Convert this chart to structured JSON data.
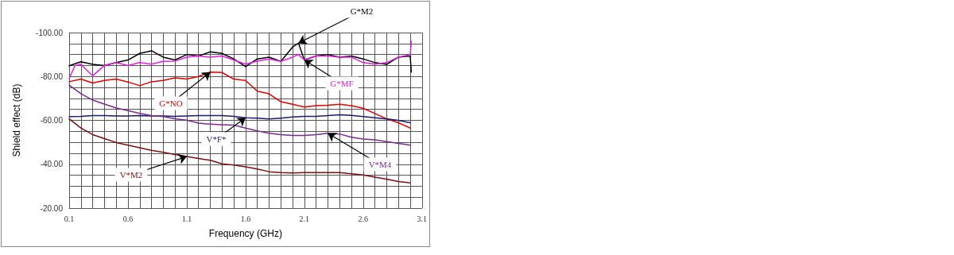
{
  "chart_data": {
    "type": "line",
    "xlabel": "Frequency (GHz)",
    "ylabel": "Shield effect (dB)",
    "x": [
      0.1,
      0.2,
      0.3,
      0.4,
      0.5,
      0.6,
      0.7,
      0.8,
      0.9,
      1.0,
      1.1,
      1.2,
      1.3,
      1.4,
      1.5,
      1.6,
      1.7,
      1.8,
      1.9,
      2.0,
      2.1,
      2.2,
      2.3,
      2.4,
      2.5,
      2.6,
      2.7,
      2.8,
      2.9,
      3.0
    ],
    "series": [
      {
        "name": "G*M2",
        "color": "#000000",
        "x": [
          0.1,
          0.2,
          0.3,
          0.4,
          0.5,
          0.6,
          0.7,
          0.8,
          0.9,
          1.0,
          1.1,
          1.2,
          1.3,
          1.4,
          1.5,
          1.6,
          1.7,
          1.8,
          1.9,
          2.0,
          2.05,
          2.1,
          2.2,
          2.3,
          2.4,
          2.5,
          2.6,
          2.7,
          2.8,
          2.9,
          3.0,
          3.01
        ],
        "values": [
          -84.9,
          -86.7,
          -85.5,
          -85,
          -86.3,
          -87.5,
          -90.5,
          -91.7,
          -88.8,
          -87.5,
          -90,
          -89.3,
          -91.2,
          -90.5,
          -88,
          -84.5,
          -88,
          -88.8,
          -86.9,
          -93.4,
          -95.2,
          -87.5,
          -89.3,
          -90,
          -88.8,
          -89.3,
          -88,
          -86.3,
          -85.5,
          -88.8,
          -89.3,
          -82
        ]
      },
      {
        "name": "G*MF",
        "color": "#e020e0",
        "x": [
          0.1,
          0.15,
          0.2,
          0.3,
          0.4,
          0.5,
          0.6,
          0.7,
          0.8,
          0.9,
          1.0,
          1.1,
          1.2,
          1.3,
          1.4,
          1.5,
          1.6,
          1.7,
          1.8,
          1.9,
          2.0,
          2.05,
          2.1,
          2.2,
          2.3,
          2.4,
          2.5,
          2.6,
          2.7,
          2.8,
          2.9,
          3.0,
          3.01
        ],
        "values": [
          -79,
          -85,
          -85.5,
          -80.3,
          -85,
          -86.3,
          -85,
          -86.3,
          -85.6,
          -86.9,
          -87,
          -88.8,
          -89.3,
          -88.8,
          -89.3,
          -87.5,
          -85.6,
          -87,
          -88,
          -86.9,
          -88.8,
          -90,
          -87.5,
          -89.3,
          -89.3,
          -88.8,
          -88.8,
          -86.3,
          -85.6,
          -86.3,
          -88.8,
          -90,
          -96
        ]
      },
      {
        "name": "G*NO",
        "color": "#e00000",
        "values": [
          -77.6,
          -78.8,
          -77,
          -78.2,
          -78.8,
          -77.5,
          -75.8,
          -77.6,
          -78.2,
          -79.4,
          -78.8,
          -80,
          -82,
          -81.8,
          -78.8,
          -78.2,
          -73.3,
          -72.1,
          -68.5,
          -67.3,
          -66.1,
          -66.7,
          -66.9,
          -67.3,
          -66.7,
          -65.5,
          -63.1,
          -60.7,
          -58.9,
          -56.5
        ]
      },
      {
        "name": "V*F*",
        "color": "#1a1a6e",
        "values": [
          -61.7,
          -61.8,
          -62.2,
          -62.2,
          -62,
          -62,
          -62.2,
          -62,
          -62,
          -61.8,
          -62,
          -62.2,
          -62.2,
          -62.2,
          -61.8,
          -61.2,
          -61,
          -60.6,
          -61,
          -61.5,
          -61.8,
          -61.8,
          -62.2,
          -62.5,
          -62.3,
          -61.7,
          -61.2,
          -60.6,
          -60,
          -58.9
        ]
      },
      {
        "name": "V*M4",
        "color": "#7b2a8e",
        "values": [
          -76.1,
          -72.2,
          -69.2,
          -67.4,
          -65.6,
          -64.4,
          -63.2,
          -62.2,
          -61.7,
          -60.7,
          -60.1,
          -58.7,
          -58.3,
          -58,
          -57.8,
          -56.5,
          -55.2,
          -54.1,
          -53.5,
          -53.1,
          -53.1,
          -53.5,
          -54.1,
          -53.8,
          -52.3,
          -51.5,
          -51.1,
          -50.3,
          -49.5,
          -48.7
        ]
      },
      {
        "name": "V*M2",
        "color": "#7a1010",
        "values": [
          -60.7,
          -56.5,
          -53.5,
          -51.7,
          -49.9,
          -48.7,
          -47.5,
          -46.3,
          -45.4,
          -44.4,
          -43.5,
          -42.6,
          -41.8,
          -40.2,
          -39.6,
          -38.8,
          -37.8,
          -36.6,
          -36.2,
          -36,
          -36.2,
          -36.2,
          -36.2,
          -36.2,
          -35.7,
          -35.1,
          -34.1,
          -33.2,
          -32.1,
          -31.5
        ]
      }
    ],
    "xlim": [
      0.1,
      3.1
    ],
    "xticks": [
      0.1,
      0.6,
      1.1,
      1.6,
      2.1,
      2.6,
      3.1
    ],
    "ylim": [
      -20,
      -100
    ],
    "yticks": [
      {
        "value": -100,
        "label": "-100.00"
      },
      {
        "value": -80,
        "label": "-80.00"
      },
      {
        "value": -60,
        "label": "-60.00"
      },
      {
        "value": -40,
        "label": "-40.00"
      },
      {
        "value": -20,
        "label": "-20.00"
      }
    ],
    "grid": true,
    "legend": false,
    "marker": "none",
    "line_style": "solid"
  }
}
